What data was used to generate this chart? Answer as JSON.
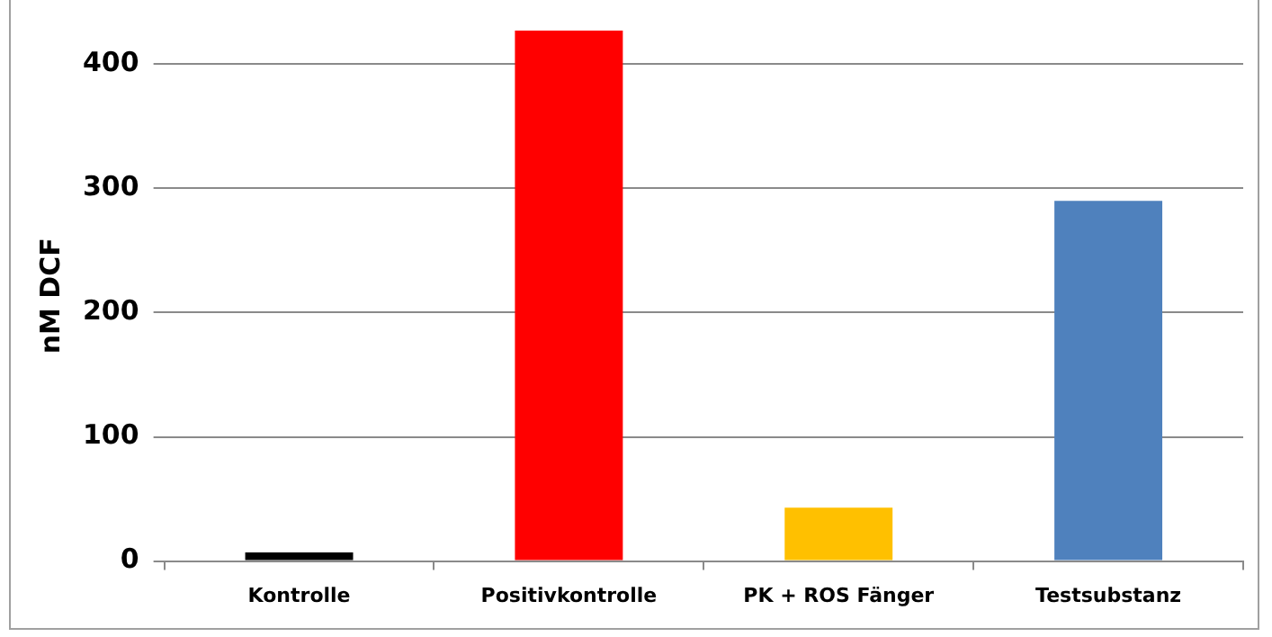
{
  "chart_data": {
    "type": "bar",
    "ylabel": "nM DCF",
    "categories": [
      "Kontrolle",
      "Positivkontrolle",
      "PK + ROS Fänger",
      "Testsubstanz"
    ],
    "values": [
      7,
      427,
      43,
      290
    ],
    "colors": [
      "#000000",
      "#ff0000",
      "#ffc000",
      "#4f81bd"
    ],
    "ylim": [
      0,
      427
    ],
    "yticks": [
      0,
      100,
      200,
      300,
      400
    ],
    "grid": "y",
    "legend": false
  }
}
